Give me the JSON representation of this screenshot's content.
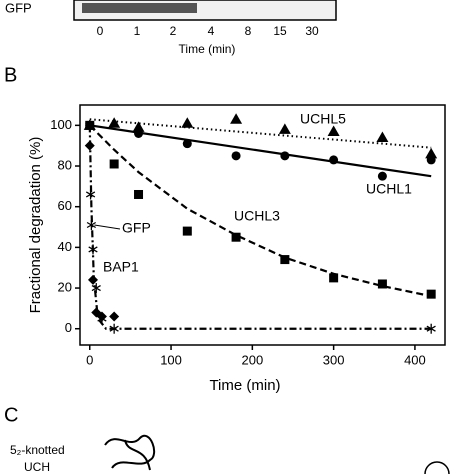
{
  "gel": {
    "label": "GFP",
    "lanes": [
      "0",
      "1",
      "2",
      "4",
      "8",
      "15",
      "30"
    ],
    "xlabel": "Time (min)"
  },
  "panels": [
    "B",
    "C"
  ],
  "panel_c": {
    "label_line1": "5₂-knotted",
    "label_line2": "UCH"
  },
  "chart_data": {
    "type": "scatter",
    "xlabel": "Time (min)",
    "ylabel": "Fractional degradation (%)",
    "xlim": [
      -12,
      437
    ],
    "ylim": [
      -8,
      110
    ],
    "xticks": [
      0,
      100,
      200,
      300,
      400
    ],
    "yticks": [
      0,
      20,
      40,
      60,
      80,
      100
    ],
    "series": [
      {
        "name": "UCHL5",
        "marker": "triangle",
        "color": "#000000",
        "x": [
          0,
          30,
          60,
          120,
          180,
          240,
          300,
          360,
          420
        ],
        "values": [
          100,
          101,
          99,
          101,
          103,
          98,
          97,
          94,
          86
        ]
      },
      {
        "name": "UCHL1",
        "marker": "circle",
        "color": "#000000",
        "x": [
          0,
          60,
          120,
          180,
          240,
          300,
          360,
          420
        ],
        "values": [
          100,
          96,
          91,
          85,
          85,
          83,
          75,
          83
        ]
      },
      {
        "name": "UCHL3",
        "marker": "square",
        "color": "#000000",
        "x": [
          0,
          30,
          60,
          120,
          180,
          240,
          300,
          360,
          420
        ],
        "values": [
          100,
          81,
          66,
          48,
          45,
          34,
          25,
          22,
          17
        ]
      },
      {
        "name": "GFP",
        "marker": "asterisk",
        "color": "#000000",
        "x": [
          0,
          1,
          2,
          4,
          8,
          15,
          30,
          420
        ],
        "values": [
          100,
          66,
          51,
          39,
          20,
          5,
          0,
          0
        ]
      },
      {
        "name": "BAP1",
        "marker": "diamond",
        "color": "#000000",
        "x": [
          0,
          4,
          8,
          15,
          30
        ],
        "values": [
          90,
          24,
          8,
          6,
          6
        ]
      },
      {
        "style": "dotted",
        "color": "#000000",
        "x": [
          0,
          420
        ],
        "values": [
          103,
          89
        ]
      },
      {
        "style": "solid",
        "color": "#000000",
        "x": [
          0,
          420
        ],
        "values": [
          100,
          75
        ]
      },
      {
        "style": "dashed",
        "color": "#000000",
        "x": [
          0,
          30,
          60,
          90,
          120,
          180,
          240,
          300,
          360,
          420
        ],
        "values": [
          100,
          88,
          77,
          68,
          59,
          46,
          35,
          27,
          21,
          16
        ]
      },
      {
        "style": "dashdot",
        "color": "#000000",
        "x": [
          0,
          2,
          5,
          10,
          20,
          420
        ],
        "values": [
          100,
          60,
          25,
          5,
          0,
          0
        ]
      }
    ]
  }
}
